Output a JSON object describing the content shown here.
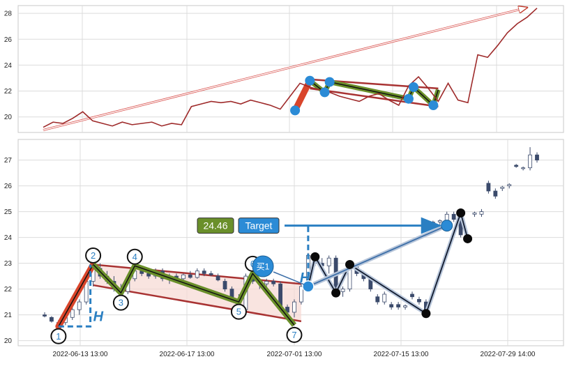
{
  "chart_data": [
    {
      "type": "line",
      "panel": "overview",
      "ylim": [
        18.8,
        28.6
      ],
      "yticks": [
        "20",
        "22",
        "24",
        "26",
        "28"
      ],
      "grid": true,
      "series": [
        {
          "color": "#9e2a2a",
          "x": [
            0,
            2,
            4,
            6,
            8,
            10,
            12,
            14,
            16,
            18,
            20,
            22,
            24,
            26,
            28,
            30,
            32,
            34,
            36,
            38,
            40,
            42,
            44,
            46,
            48,
            50,
            52,
            54,
            56,
            58,
            60,
            62,
            64,
            66,
            68,
            70,
            72,
            74,
            76,
            78,
            80,
            82,
            84,
            86,
            88,
            90,
            92,
            94,
            96,
            98,
            100
          ],
          "y": [
            19.2,
            19.6,
            19.5,
            19.9,
            20.4,
            19.7,
            19.5,
            19.3,
            19.6,
            19.4,
            19.5,
            19.6,
            19.3,
            19.5,
            19.4,
            20.8,
            21.0,
            21.2,
            21.1,
            21.2,
            21.0,
            21.3,
            21.1,
            20.9,
            20.6,
            21.6,
            22.6,
            22.3,
            22.1,
            21.9,
            21.6,
            21.4,
            21.2,
            21.6,
            21.8,
            21.3,
            20.9,
            22.4,
            23.1,
            22.2,
            21.2,
            22.6,
            21.3,
            21.1,
            24.8,
            24.6,
            25.5,
            26.5,
            27.2,
            27.7,
            28.4
          ]
        }
      ]
    },
    {
      "type": "candlestick",
      "panel": "main",
      "ylim": [
        19.8,
        27.8
      ],
      "yticks": [
        "20",
        "21",
        "22",
        "23",
        "24",
        "25",
        "26",
        "27"
      ],
      "xticks": [
        "2022-06-13 13:00",
        "2022-06-17 13:00",
        "2022-07-01 13:00",
        "2022-07-15 13:00",
        "2022-07-29 14:00"
      ],
      "grid": true,
      "candles": [
        [
          0,
          21.0,
          21.1,
          20.9,
          20.95
        ],
        [
          1,
          20.9,
          20.95,
          20.7,
          20.75
        ],
        [
          2,
          20.6,
          20.8,
          20.5,
          20.7
        ],
        [
          3,
          20.7,
          21.0,
          20.6,
          20.9
        ],
        [
          4,
          20.9,
          21.3,
          20.8,
          21.2
        ],
        [
          5,
          21.2,
          21.6,
          21.0,
          21.5
        ],
        [
          6,
          21.5,
          22.4,
          21.4,
          22.3
        ],
        [
          7,
          22.3,
          22.9,
          22.1,
          22.8
        ],
        [
          8,
          22.8,
          23.0,
          22.4,
          22.5
        ],
        [
          9,
          22.5,
          22.7,
          22.2,
          22.3
        ],
        [
          10,
          22.3,
          22.5,
          21.9,
          22.0
        ],
        [
          11,
          22.0,
          22.2,
          21.8,
          21.9
        ],
        [
          12,
          21.9,
          22.5,
          21.8,
          22.4
        ],
        [
          13,
          22.4,
          22.9,
          22.3,
          22.7
        ],
        [
          14,
          22.7,
          22.8,
          22.5,
          22.6
        ],
        [
          15,
          22.6,
          22.7,
          22.4,
          22.5
        ],
        [
          16,
          22.5,
          22.8,
          22.4,
          22.7
        ],
        [
          17,
          22.7,
          22.8,
          22.3,
          22.4
        ],
        [
          18,
          22.4,
          22.6,
          22.2,
          22.5
        ],
        [
          19,
          22.5,
          22.6,
          22.3,
          22.4
        ],
        [
          20,
          22.4,
          22.6,
          22.3,
          22.55
        ],
        [
          21,
          22.55,
          22.7,
          22.4,
          22.45
        ],
        [
          22,
          22.45,
          22.8,
          22.4,
          22.7
        ],
        [
          23,
          22.7,
          22.8,
          22.5,
          22.6
        ],
        [
          24,
          22.6,
          22.7,
          22.5,
          22.55
        ],
        [
          25,
          22.5,
          22.6,
          22.3,
          22.35
        ],
        [
          26,
          22.3,
          22.4,
          21.9,
          22.0
        ],
        [
          27,
          22.0,
          22.1,
          21.5,
          21.6
        ],
        [
          28,
          21.6,
          21.8,
          21.1,
          21.2
        ],
        [
          29,
          21.2,
          22.6,
          21.1,
          22.5
        ],
        [
          30,
          22.5,
          22.9,
          22.2,
          22.3
        ],
        [
          31,
          22.3,
          22.4,
          22.0,
          22.2
        ],
        [
          32,
          22.2,
          22.4,
          22.1,
          22.3
        ],
        [
          33,
          22.3,
          22.4,
          22.1,
          22.2
        ],
        [
          34,
          22.2,
          22.3,
          21.2,
          21.3
        ],
        [
          35,
          21.3,
          21.4,
          21.0,
          21.1
        ],
        [
          36,
          21.1,
          21.6,
          20.9,
          21.5
        ],
        [
          37,
          21.5,
          22.2,
          21.4,
          22.1
        ],
        [
          38,
          22.1,
          23.4,
          22.0,
          23.3
        ],
        [
          39,
          23.3,
          23.4,
          22.9,
          23.0
        ],
        [
          40,
          23.0,
          23.2,
          22.8,
          22.9
        ],
        [
          41,
          22.9,
          23.3,
          22.6,
          23.2
        ],
        [
          42,
          23.2,
          23.3,
          21.8,
          21.9
        ],
        [
          43,
          21.9,
          22.1,
          21.7,
          22.0
        ],
        [
          44,
          22.0,
          23.0,
          21.9,
          22.9
        ],
        [
          45,
          22.9,
          23.0,
          22.5,
          22.6
        ],
        [
          46,
          22.6,
          22.7,
          22.3,
          22.4
        ],
        [
          47,
          22.4,
          22.5,
          21.9,
          22.0
        ],
        [
          48,
          21.7,
          21.8,
          21.4,
          21.5
        ],
        [
          49,
          21.5,
          21.9,
          21.4,
          21.8
        ],
        [
          50,
          21.4,
          21.5,
          21.2,
          21.3
        ],
        [
          51,
          21.4,
          21.5,
          21.2,
          21.3
        ],
        [
          52,
          21.3,
          21.4,
          21.2,
          21.35
        ],
        [
          53,
          21.8,
          21.9,
          21.6,
          21.7
        ],
        [
          54,
          21.6,
          21.7,
          21.4,
          21.5
        ],
        [
          55,
          21.5,
          21.6,
          21.0,
          21.1
        ],
        [
          56,
          24.55,
          24.65,
          24.4,
          24.6
        ],
        [
          57,
          24.6,
          24.7,
          24.5,
          24.65
        ],
        [
          58,
          24.65,
          25.0,
          24.6,
          24.9
        ],
        [
          59,
          24.9,
          25.0,
          24.6,
          24.7
        ],
        [
          60,
          24.7,
          24.8,
          24.0,
          24.1
        ],
        [
          61,
          23.9,
          24.1,
          23.8,
          24.0
        ],
        [
          62,
          24.9,
          25.0,
          24.8,
          24.95
        ],
        [
          63,
          24.9,
          25.1,
          24.8,
          25.0
        ],
        [
          64,
          26.1,
          26.2,
          25.7,
          25.8
        ],
        [
          65,
          25.8,
          25.9,
          25.5,
          25.6
        ],
        [
          66,
          25.9,
          26.0,
          25.8,
          25.95
        ],
        [
          67,
          26.0,
          26.1,
          25.9,
          26.05
        ],
        [
          68,
          26.8,
          26.85,
          26.7,
          26.75
        ],
        [
          69,
          26.7,
          26.75,
          26.6,
          26.7
        ],
        [
          70,
          26.7,
          27.5,
          26.6,
          27.2
        ],
        [
          71,
          27.2,
          27.3,
          26.9,
          27.0
        ]
      ],
      "pattern_points": [
        {
          "label": "1",
          "x": 2,
          "y": 20.55
        },
        {
          "label": "2",
          "x": 7,
          "y": 22.95
        },
        {
          "label": "3",
          "x": 11,
          "y": 21.85
        },
        {
          "label": "4",
          "x": 13,
          "y": 22.9
        },
        {
          "label": "5",
          "x": 28,
          "y": 21.5
        },
        {
          "label": "6",
          "x": 30,
          "y": 22.6
        },
        {
          "label": "7",
          "x": 36,
          "y": 20.6
        }
      ],
      "swing_points_after": [
        {
          "x": 39,
          "y": 23.25
        },
        {
          "x": 42,
          "y": 21.85
        },
        {
          "x": 44,
          "y": 22.95
        },
        {
          "x": 55,
          "y": 21.05
        },
        {
          "x": 60,
          "y": 24.95
        },
        {
          "x": 61,
          "y": 23.95
        }
      ],
      "buy_signal": {
        "label": "买1",
        "x": 38,
        "y": 22.1
      },
      "target": {
        "label": "Target",
        "value": "24.46",
        "x": 58,
        "y": 24.46
      }
    }
  ]
}
